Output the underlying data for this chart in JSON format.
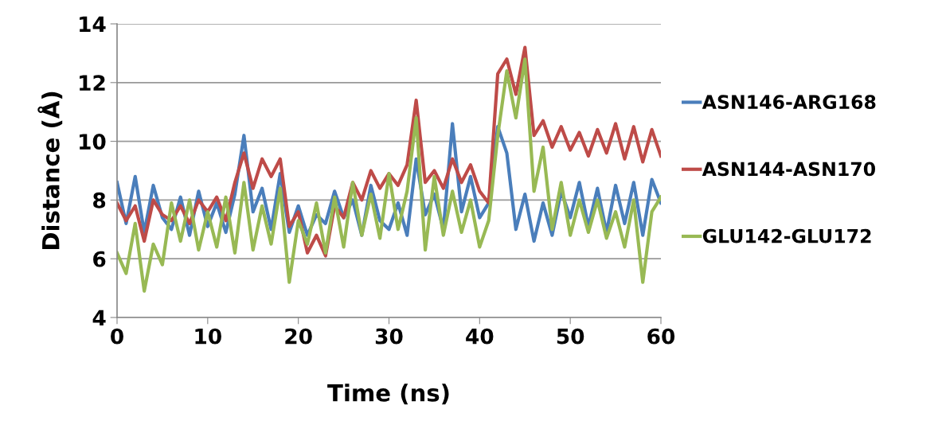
{
  "chart_data": {
    "type": "line",
    "xlabel": "Time (ns)",
    "ylabel": "Distance (Å)",
    "x": [
      0,
      1,
      2,
      3,
      4,
      5,
      6,
      7,
      8,
      9,
      10,
      11,
      12,
      13,
      14,
      15,
      16,
      17,
      18,
      19,
      20,
      21,
      22,
      23,
      24,
      25,
      26,
      27,
      28,
      29,
      30,
      31,
      32,
      33,
      34,
      35,
      36,
      37,
      38,
      39,
      40,
      41,
      42,
      43,
      44,
      45,
      46,
      47,
      48,
      49,
      50,
      51,
      52,
      53,
      54,
      55,
      56,
      57,
      58,
      59,
      60
    ],
    "xlim": [
      0,
      60
    ],
    "xticks": [
      0,
      10,
      20,
      30,
      40,
      50,
      60
    ],
    "ylim": [
      4,
      14
    ],
    "yticks": [
      4,
      6,
      8,
      10,
      12,
      14
    ],
    "grid": "y",
    "legend": "right",
    "line_style": "solid",
    "marker": "none",
    "series": [
      {
        "name": "ASN146-ARG168",
        "color": "#4a7ebb",
        "values": [
          8.6,
          7.2,
          8.8,
          6.9,
          8.5,
          7.4,
          7.0,
          8.1,
          6.8,
          8.3,
          7.1,
          7.9,
          6.9,
          8.2,
          10.2,
          7.6,
          8.4,
          7.0,
          8.9,
          6.9,
          7.8,
          6.8,
          7.5,
          7.2,
          8.3,
          7.4,
          8.0,
          6.8,
          8.5,
          7.3,
          7.0,
          7.9,
          6.8,
          9.4,
          7.5,
          8.2,
          7.0,
          10.6,
          7.6,
          8.8,
          7.4,
          7.9,
          10.5,
          9.6,
          7.0,
          8.2,
          6.6,
          7.9,
          6.8,
          8.3,
          7.4,
          8.6,
          7.1,
          8.4,
          6.9,
          8.5,
          7.2,
          8.6,
          6.8,
          8.7,
          7.9
        ]
      },
      {
        "name": "ASN144-ASN170",
        "color": "#be4b48",
        "values": [
          7.9,
          7.3,
          7.8,
          6.6,
          8.0,
          7.5,
          7.3,
          7.8,
          7.2,
          8.0,
          7.6,
          8.1,
          7.3,
          8.6,
          9.6,
          8.4,
          9.4,
          8.8,
          9.4,
          7.1,
          7.6,
          6.2,
          6.8,
          6.1,
          7.8,
          7.4,
          8.6,
          8.0,
          9.0,
          8.4,
          8.9,
          8.5,
          9.2,
          11.4,
          8.6,
          9.0,
          8.4,
          9.4,
          8.6,
          9.2,
          8.3,
          7.9,
          12.3,
          12.8,
          11.6,
          13.2,
          10.2,
          10.7,
          9.8,
          10.5,
          9.7,
          10.3,
          9.5,
          10.4,
          9.6,
          10.6,
          9.4,
          10.5,
          9.3,
          10.4,
          9.5
        ]
      },
      {
        "name": "GLU142-GLU172",
        "color": "#98b954",
        "values": [
          6.2,
          5.5,
          7.2,
          4.9,
          6.5,
          5.8,
          7.9,
          6.6,
          8.0,
          6.3,
          7.6,
          6.4,
          8.1,
          6.2,
          8.6,
          6.3,
          7.8,
          6.5,
          8.4,
          5.2,
          7.3,
          6.5,
          7.9,
          6.2,
          8.1,
          6.4,
          8.6,
          6.8,
          8.2,
          6.7,
          8.9,
          7.0,
          8.3,
          10.8,
          6.3,
          8.8,
          6.8,
          8.3,
          6.9,
          8.0,
          6.4,
          7.3,
          10.2,
          12.4,
          10.8,
          12.8,
          8.3,
          9.8,
          7.0,
          8.6,
          6.8,
          8.0,
          6.9,
          8.0,
          6.7,
          7.6,
          6.4,
          8.0,
          5.2,
          7.6,
          8.1
        ]
      }
    ]
  }
}
